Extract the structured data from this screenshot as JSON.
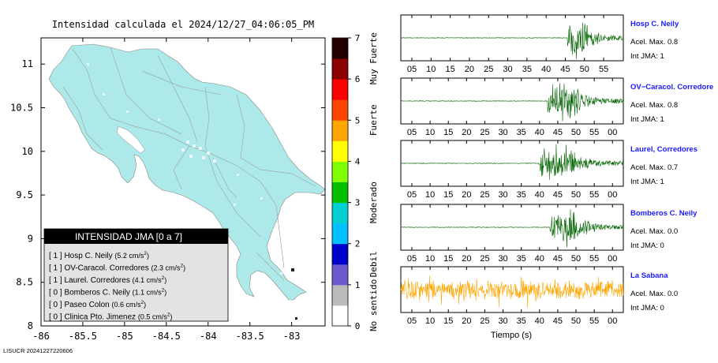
{
  "map": {
    "title": "Intensidad calculada el 2024/12/27_04:06:05_PM",
    "x_ticks": [
      "-86",
      "-85.5",
      "-85",
      "-84.5",
      "-84",
      "-83.5",
      "-83"
    ],
    "y_ticks": [
      "11",
      "10.5",
      "10",
      "9.5",
      "9",
      "8.5",
      "8"
    ],
    "land_color": "#aee9e9",
    "footer": "LISUCR 20241227220606"
  },
  "legend_box": {
    "header": "INTENSIDAD JMA [0 a 7]",
    "rows": [
      {
        "level": "[ 1 ]",
        "label": "Hosp C. Neily",
        "acc": "(5.2 cm/s",
        "sup": "2",
        "end": ")"
      },
      {
        "level": "[ 1 ]",
        "label": "OV-Caracol. Corredores",
        "acc": "(2.3 cm/s",
        "sup": "2",
        "end": ")"
      },
      {
        "level": "[ 1 ]",
        "label": "Laurel. Corredores",
        "acc": "(4.1 cm/s",
        "sup": "2",
        "end": ")"
      },
      {
        "level": "[ 0 ]",
        "label": "Bomberos C. Neily",
        "acc": "(1.1 cm/s",
        "sup": "2",
        "end": ")"
      },
      {
        "level": "[ 0 ]",
        "label": "Paseo Colon",
        "acc": "(0.6 cm/s",
        "sup": "2",
        "end": ")"
      },
      {
        "level": "[ 0 ]",
        "label": "Clinica Pto. Jimenez",
        "acc": "(0.5 cm/s",
        "sup": "2",
        "end": ")"
      }
    ]
  },
  "colorbar": {
    "ticks": [
      "0",
      "1",
      "2",
      "3",
      "4",
      "5",
      "6",
      "7"
    ],
    "categories": [
      "No sentido",
      "Debil",
      "Moderado",
      "Fuerte",
      "Muy Fuerte"
    ],
    "colors": [
      "#ffffff",
      "#bbbbbb",
      "#6a5acd",
      "#0000cd",
      "#00bfff",
      "#00ced1",
      "#00c000",
      "#7fff00",
      "#ffff00",
      "#ffa500",
      "#ff4500",
      "#ff0000",
      "#8b0000",
      "#220000"
    ]
  },
  "traces": [
    {
      "station": "Hosp C. Neily",
      "accel": "Acel. Max. 0.8",
      "int": "Int JMA: 1",
      "ticks": [
        "05",
        "10",
        "15",
        "20",
        "25",
        "30",
        "35",
        "40",
        "45",
        "50",
        "55"
      ],
      "color": "#006400",
      "onset": 0.75
    },
    {
      "station": "OV−Caracol. Corredore",
      "accel": "Acel. Max. 0.8",
      "int": "Int JMA: 1",
      "ticks": [
        "05",
        "10",
        "15",
        "20",
        "25",
        "30",
        "35",
        "40",
        "45",
        "50",
        "55",
        "00"
      ],
      "color": "#006400",
      "onset": 0.66
    },
    {
      "station": "Laurel, Corredores",
      "accel": "Acel. Max. 0.7",
      "int": "Int JMA: 1",
      "ticks": [
        "05",
        "10",
        "15",
        "20",
        "25",
        "30",
        "35",
        "40",
        "45",
        "50",
        "55",
        "00"
      ],
      "color": "#006400",
      "onset": 0.62
    },
    {
      "station": "Bomberos C. Neily",
      "accel": "Acel. Max. 0.0",
      "int": "Int JMA: 0",
      "ticks": [
        "05",
        "10",
        "15",
        "20",
        "25",
        "30",
        "35",
        "40",
        "45",
        "50",
        "55",
        "00"
      ],
      "color": "#006400",
      "onset": 0.67
    },
    {
      "station": "La Sabana",
      "accel": "Acel. Max. 0.0",
      "int": "Int JMA: 0",
      "ticks": [
        "05",
        "10",
        "15",
        "20",
        "25",
        "30",
        "35",
        "40",
        "45",
        "50",
        "55",
        "00"
      ],
      "color": "#ffa500",
      "onset": 0.0
    }
  ],
  "time_axis_label": "Tiempo (s)",
  "chart_data": [
    {
      "type": "heatmap",
      "title": "Intensidad calculada el 2024/12/27_04:06:05_PM",
      "xlim": [
        -86,
        -82.6
      ],
      "ylim": [
        8,
        11.3
      ],
      "x_ticks": [
        -86,
        -85.5,
        -85,
        -84.5,
        -84,
        -83.5,
        -83
      ],
      "y_ticks": [
        8,
        8.5,
        9,
        9.5,
        10,
        10.5,
        11
      ],
      "colorbar_range": [
        0,
        7
      ],
      "legend_title": "INTENSIDAD JMA [0 a 7]",
      "stations": [
        {
          "name": "Hosp C. Neily",
          "intensity": 1,
          "pga_cm_s2": 5.2
        },
        {
          "name": "OV-Caracol. Corredores",
          "intensity": 1,
          "pga_cm_s2": 2.3
        },
        {
          "name": "Laurel. Corredores",
          "intensity": 1,
          "pga_cm_s2": 4.1
        },
        {
          "name": "Bomberos C. Neily",
          "intensity": 0,
          "pga_cm_s2": 1.1
        },
        {
          "name": "Paseo Colon",
          "intensity": 0,
          "pga_cm_s2": 0.6
        },
        {
          "name": "Clinica Pto. Jimenez",
          "intensity": 0,
          "pga_cm_s2": 0.5
        }
      ]
    },
    {
      "type": "line",
      "xlabel": "Tiempo (s)",
      "series": [
        {
          "name": "Hosp C. Neily",
          "max_accel": 0.8,
          "jma_intensity": 1
        },
        {
          "name": "OV−Caracol, Corredore",
          "max_accel": 0.8,
          "jma_intensity": 1
        },
        {
          "name": "Laurel, Corredores",
          "max_accel": 0.7,
          "jma_intensity": 1
        },
        {
          "name": "Bomberos C. Neily",
          "max_accel": 0.0,
          "jma_intensity": 0
        },
        {
          "name": "La Sabana",
          "max_accel": 0.0,
          "jma_intensity": 0
        }
      ]
    }
  ]
}
